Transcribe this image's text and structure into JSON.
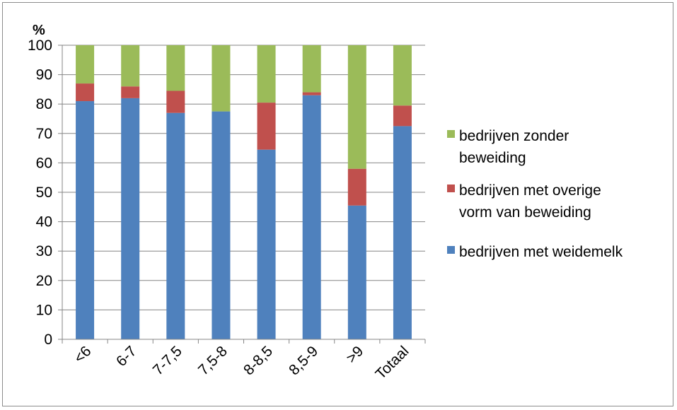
{
  "chart_data": {
    "type": "bar",
    "stacked": true,
    "ylabel": "%",
    "xlabel": "",
    "ylim": [
      0,
      100
    ],
    "yticks": [
      0,
      10,
      20,
      30,
      40,
      50,
      60,
      70,
      80,
      90,
      100
    ],
    "grid": true,
    "legend_position": "right",
    "categories": [
      "<6",
      "6-7",
      "7-7,5",
      "7,5-8",
      "8-8,5",
      "8,5-9",
      ">9",
      "Totaal"
    ],
    "series": [
      {
        "name": "bedrijven met weidemelk",
        "color": "#4f81bd",
        "values": [
          81,
          82,
          77,
          77.5,
          64.5,
          83,
          45.5,
          72.5
        ]
      },
      {
        "name": "bedrijven met overige vorm van beweiding",
        "color": "#c0504d",
        "values": [
          6,
          4,
          7.5,
          0,
          16,
          1,
          12.5,
          7
        ]
      },
      {
        "name": "bedrijven zonder beweiding",
        "color": "#9bbb59",
        "values": [
          13,
          14,
          15.5,
          22.5,
          19.5,
          16,
          42,
          20.5
        ]
      }
    ],
    "legend_lines": [
      {
        "series_index": 2,
        "lines": [
          "bedrijven zonder",
          "beweiding"
        ]
      },
      {
        "series_index": 1,
        "lines": [
          "bedrijven met overige",
          "vorm van beweiding"
        ]
      },
      {
        "series_index": 0,
        "lines": [
          "bedrijven met weidemelk"
        ]
      }
    ]
  }
}
